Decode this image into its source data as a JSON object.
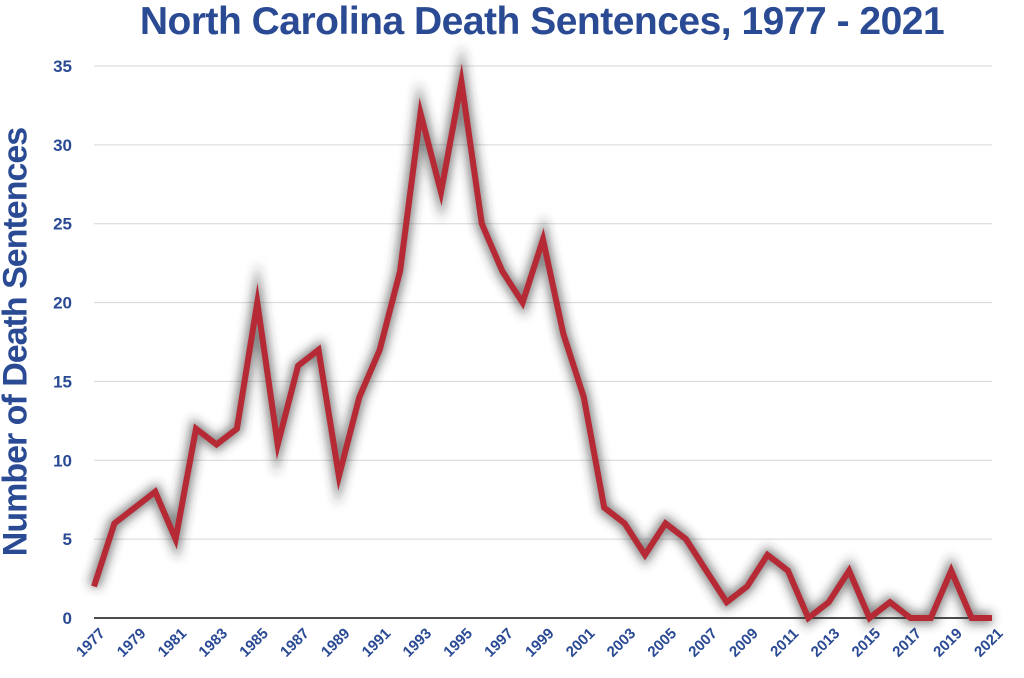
{
  "colors": {
    "title": "#2a4a94",
    "axis_text": "#2a4a94",
    "line": "#b52a35",
    "shadow": "#333333",
    "grid": "#d6d6d6",
    "baseline": "#111111"
  },
  "chart_data": {
    "type": "line",
    "title": "North Carolina Death Sentences, 1977 - 2021",
    "xlabel": "",
    "ylabel": "Number of Death Sentences",
    "ylim": [
      0,
      35
    ],
    "yticks": [
      0,
      5,
      10,
      15,
      20,
      25,
      30,
      35
    ],
    "x_tick_labels": [
      "1977",
      "1979",
      "1981",
      "1983",
      "1985",
      "1987",
      "1989",
      "1991",
      "1993",
      "1995",
      "1997",
      "1999",
      "2001",
      "2003",
      "2005",
      "2007",
      "2009",
      "2011",
      "2013",
      "2015",
      "2017",
      "2019",
      "2021"
    ],
    "grid": true,
    "legend": "none",
    "x": [
      1977,
      1978,
      1979,
      1980,
      1981,
      1982,
      1983,
      1984,
      1985,
      1986,
      1987,
      1988,
      1989,
      1990,
      1991,
      1992,
      1993,
      1994,
      1995,
      1996,
      1997,
      1998,
      1999,
      2000,
      2001,
      2002,
      2003,
      2004,
      2005,
      2006,
      2007,
      2008,
      2009,
      2010,
      2011,
      2012,
      2013,
      2014,
      2015,
      2016,
      2017,
      2018,
      2019,
      2020,
      2021
    ],
    "series": [
      {
        "values": [
          2,
          6,
          7,
          8,
          5,
          12,
          11,
          12,
          20,
          11,
          16,
          17,
          9,
          14,
          17,
          22,
          32,
          27,
          34,
          25,
          22,
          20,
          24,
          18,
          14,
          7,
          6,
          4,
          6,
          5,
          3,
          1,
          2,
          4,
          3,
          0,
          1,
          3,
          0,
          1,
          0,
          0,
          3,
          0,
          0
        ]
      }
    ]
  }
}
